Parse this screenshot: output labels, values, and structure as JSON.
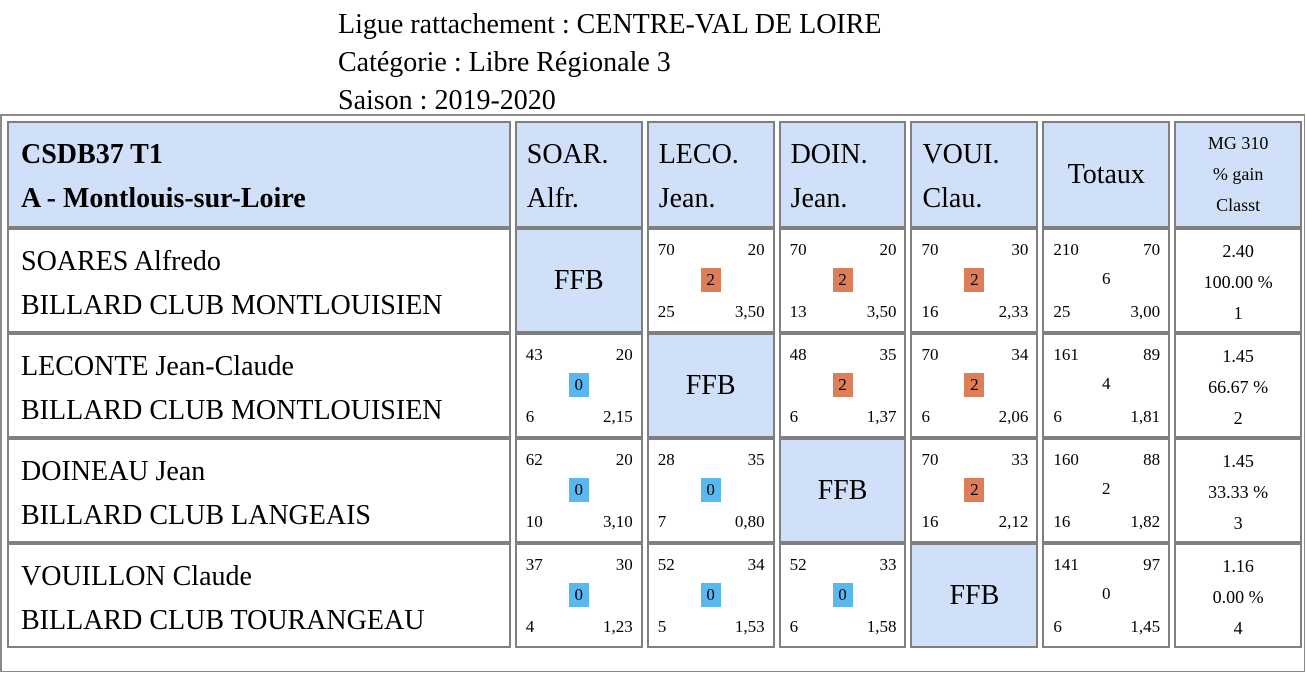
{
  "header": {
    "ligue": "Ligue rattachement : CENTRE-VAL DE LOIRE",
    "categorie": "Catégorie : Libre Régionale 3",
    "saison": "Saison : 2019-2020"
  },
  "table": {
    "team_line1": "CSDB37 T1",
    "team_line2": "A - Montlouis-sur-Loire",
    "columns": [
      {
        "l1": "SOAR.",
        "l2": "Alfr."
      },
      {
        "l1": "LECO.",
        "l2": "Jean."
      },
      {
        "l1": "DOIN.",
        "l2": "Jean."
      },
      {
        "l1": "VOUI.",
        "l2": "Clau."
      }
    ],
    "totaux_label": "Totaux",
    "mg_label": "MG 310",
    "gain_label": "% gain",
    "classt_label": "Classt",
    "ffb": "FFB",
    "players": [
      {
        "name": "SOARES Alfredo",
        "club": "BILLARD CLUB MONTLOUISIEN",
        "results": [
          null,
          {
            "tl": "70",
            "tr": "20",
            "pts": "2",
            "bl": "25",
            "br": "3,50",
            "win": true
          },
          {
            "tl": "70",
            "tr": "20",
            "pts": "2",
            "bl": "13",
            "br": "3,50",
            "win": true
          },
          {
            "tl": "70",
            "tr": "30",
            "pts": "2",
            "bl": "16",
            "br": "2,33",
            "win": true
          }
        ],
        "totals": {
          "tl": "210",
          "tr": "70",
          "mid": "6",
          "bl": "25",
          "br": "3,00"
        },
        "stats": {
          "mg": "2.40",
          "gain": "100.00 %",
          "rank": "1"
        }
      },
      {
        "name": "LECONTE Jean-Claude",
        "club": "BILLARD CLUB MONTLOUISIEN",
        "results": [
          {
            "tl": "43",
            "tr": "20",
            "pts": "0",
            "bl": "6",
            "br": "2,15",
            "win": false
          },
          null,
          {
            "tl": "48",
            "tr": "35",
            "pts": "2",
            "bl": "6",
            "br": "1,37",
            "win": true
          },
          {
            "tl": "70",
            "tr": "34",
            "pts": "2",
            "bl": "6",
            "br": "2,06",
            "win": true
          }
        ],
        "totals": {
          "tl": "161",
          "tr": "89",
          "mid": "4",
          "bl": "6",
          "br": "1,81"
        },
        "stats": {
          "mg": "1.45",
          "gain": "66.67 %",
          "rank": "2"
        }
      },
      {
        "name": "DOINEAU Jean",
        "club": "BILLARD CLUB LANGEAIS",
        "results": [
          {
            "tl": "62",
            "tr": "20",
            "pts": "0",
            "bl": "10",
            "br": "3,10",
            "win": false
          },
          {
            "tl": "28",
            "tr": "35",
            "pts": "0",
            "bl": "7",
            "br": "0,80",
            "win": false
          },
          null,
          {
            "tl": "70",
            "tr": "33",
            "pts": "2",
            "bl": "16",
            "br": "2,12",
            "win": true
          }
        ],
        "totals": {
          "tl": "160",
          "tr": "88",
          "mid": "2",
          "bl": "16",
          "br": "1,82"
        },
        "stats": {
          "mg": "1.45",
          "gain": "33.33 %",
          "rank": "3"
        }
      },
      {
        "name": "VOUILLON Claude",
        "club": "BILLARD CLUB TOURANGEAU",
        "results": [
          {
            "tl": "37",
            "tr": "30",
            "pts": "0",
            "bl": "4",
            "br": "1,23",
            "win": false
          },
          {
            "tl": "52",
            "tr": "34",
            "pts": "0",
            "bl": "5",
            "br": "1,53",
            "win": false
          },
          {
            "tl": "52",
            "tr": "33",
            "pts": "0",
            "bl": "6",
            "br": "1,58",
            "win": false
          },
          null
        ],
        "totals": {
          "tl": "141",
          "tr": "97",
          "mid": "0",
          "bl": "6",
          "br": "1,45"
        },
        "stats": {
          "mg": "1.16",
          "gain": "0.00 %",
          "rank": "4"
        }
      }
    ]
  },
  "colors": {
    "header_bg": "#cfe0f8",
    "win": "#dd7e58",
    "loss": "#5ab8f0",
    "border": "#7f7f7f"
  }
}
